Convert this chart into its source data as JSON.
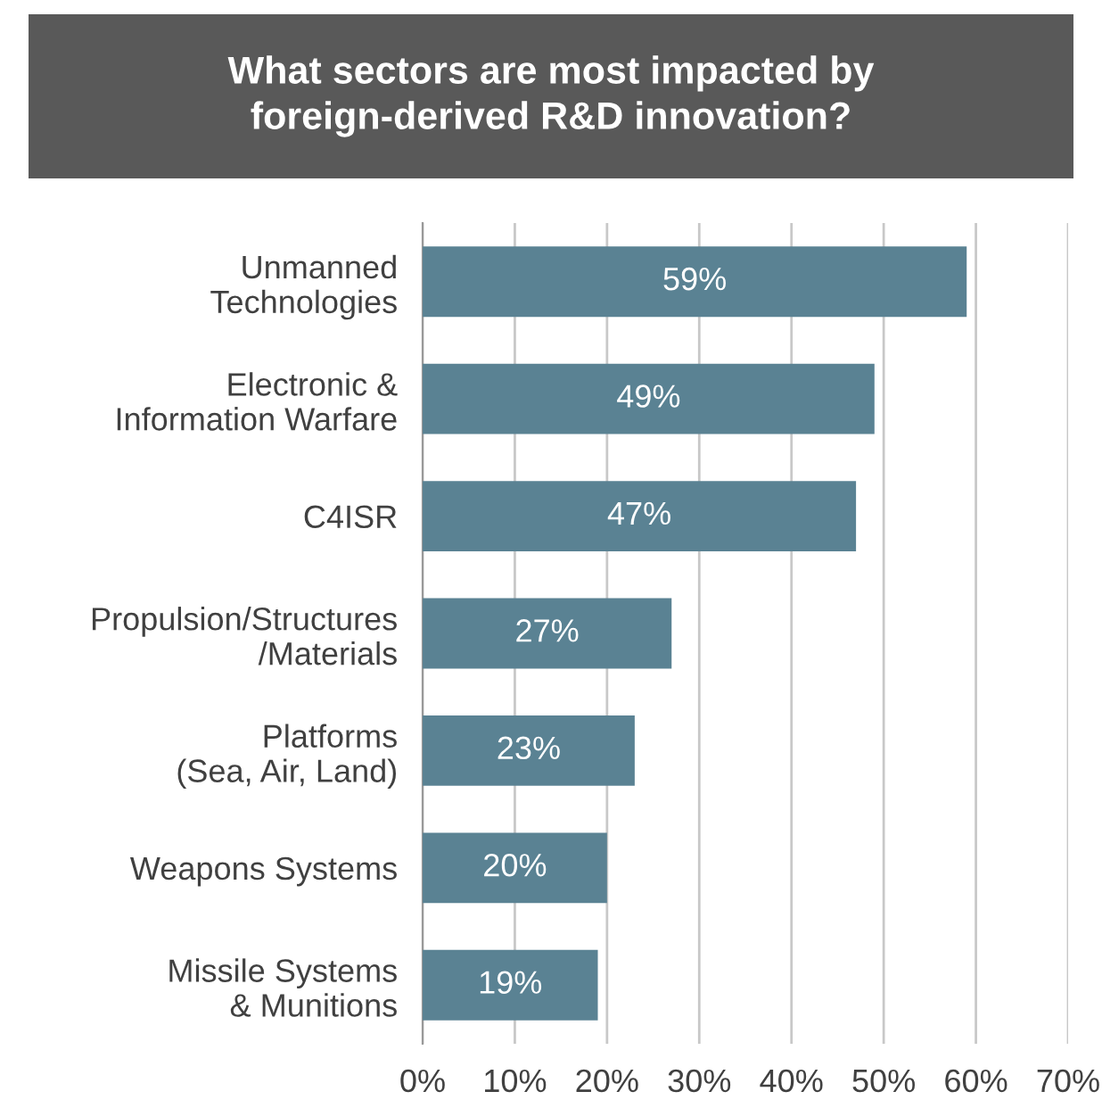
{
  "chart_data": {
    "type": "bar",
    "orientation": "horizontal",
    "title": "What sectors are most impacted by\nforeign-derived R&D innovation?",
    "categories": [
      "Unmanned\nTechnologies",
      "Electronic &\nInformation Warfare",
      "C4ISR",
      "Propulsion/Structures\n/Materials",
      "Platforms\n(Sea, Air, Land)",
      "Weapons Systems",
      "Missile Systems\n& Munitions"
    ],
    "values": [
      59,
      49,
      47,
      27,
      23,
      20,
      19
    ],
    "value_labels": [
      "59%",
      "49%",
      "47%",
      "27%",
      "23%",
      "20%",
      "19%"
    ],
    "color": "#5a8293",
    "xlim": [
      0,
      70
    ],
    "xticks": [
      {
        "value": 0,
        "label": "0%"
      },
      {
        "value": 10,
        "label": "10%"
      },
      {
        "value": 20,
        "label": "20%"
      },
      {
        "value": 30,
        "label": "30%"
      },
      {
        "value": 40,
        "label": "40%"
      },
      {
        "value": 50,
        "label": "50%"
      },
      {
        "value": 60,
        "label": "60%"
      },
      {
        "value": 70,
        "label": "70%"
      }
    ],
    "grid": "x",
    "legend": false
  }
}
